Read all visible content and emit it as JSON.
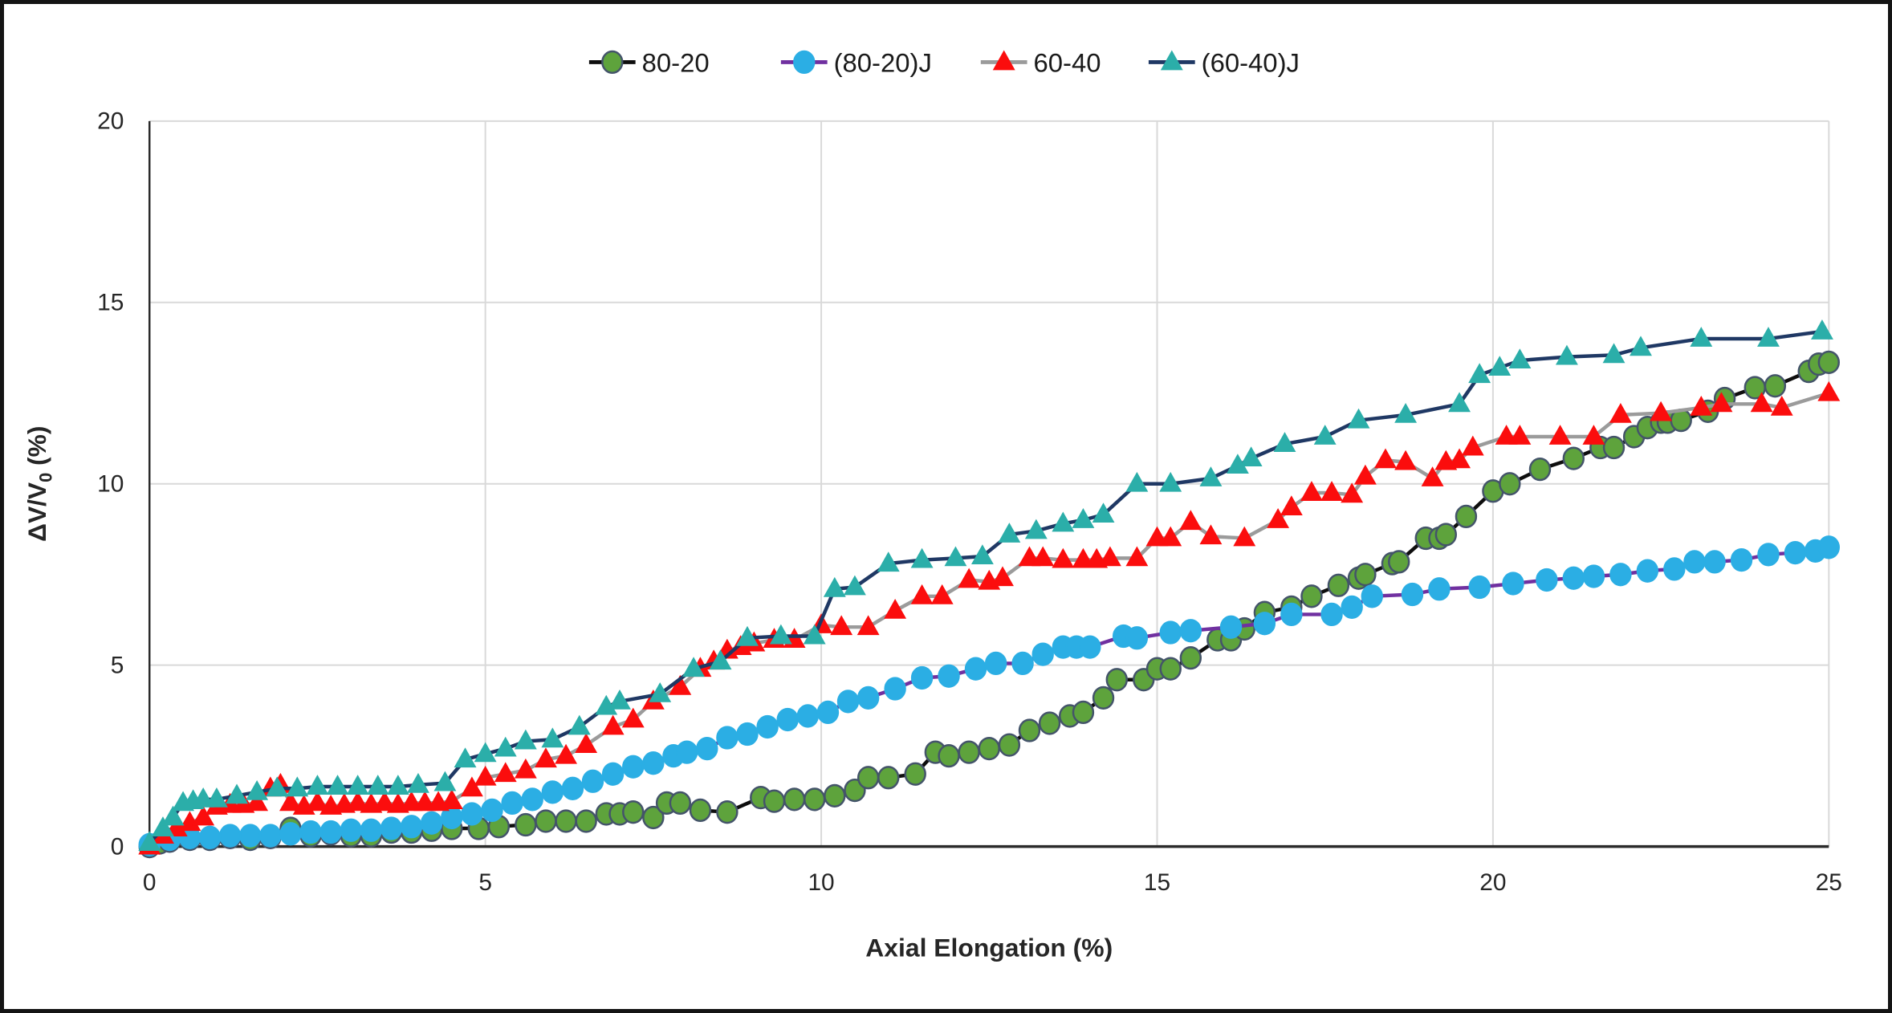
{
  "chart_data": {
    "type": "line",
    "title": "",
    "xlabel": "Axial Elongation (%)",
    "ylabel_parts": {
      "pre": "ΔV/V",
      "sub": "0",
      "post": " (%)"
    },
    "xlim": [
      0,
      25
    ],
    "ylim": [
      0,
      20
    ],
    "xticks": [
      0,
      5,
      10,
      15,
      20,
      25
    ],
    "yticks": [
      0,
      5,
      10,
      15,
      20
    ],
    "grid": true,
    "legend_position": "top-center",
    "colors": {
      "grid": "#d9d9d9",
      "axis": "#2b2b2b",
      "tick_text": "#262626",
      "legend_text": "#1a1a1a",
      "plot_bg": "#ffffff"
    },
    "series": [
      {
        "name": "80-20",
        "marker": "circle",
        "marker_color": "#5ea33c",
        "marker_stroke": "#44546a",
        "line_color": "#0e0e0e",
        "points": [
          [
            0,
            0
          ],
          [
            0.15,
            0.1
          ],
          [
            0.3,
            0.15
          ],
          [
            0.6,
            0.2
          ],
          [
            0.9,
            0.2
          ],
          [
            1.2,
            0.25
          ],
          [
            1.5,
            0.2
          ],
          [
            1.8,
            0.25
          ],
          [
            2.1,
            0.5
          ],
          [
            2.4,
            0.3
          ],
          [
            2.7,
            0.35
          ],
          [
            3.0,
            0.3
          ],
          [
            3.3,
            0.3
          ],
          [
            3.6,
            0.4
          ],
          [
            3.9,
            0.4
          ],
          [
            4.2,
            0.45
          ],
          [
            4.5,
            0.5
          ],
          [
            4.9,
            0.5
          ],
          [
            5.2,
            0.55
          ],
          [
            5.6,
            0.6
          ],
          [
            5.9,
            0.7
          ],
          [
            6.2,
            0.7
          ],
          [
            6.5,
            0.7
          ],
          [
            6.8,
            0.9
          ],
          [
            7.0,
            0.9
          ],
          [
            7.2,
            0.95
          ],
          [
            7.5,
            0.8
          ],
          [
            7.7,
            1.2
          ],
          [
            7.9,
            1.2
          ],
          [
            8.2,
            1.0
          ],
          [
            8.6,
            0.95
          ],
          [
            9.1,
            1.35
          ],
          [
            9.3,
            1.25
          ],
          [
            9.6,
            1.3
          ],
          [
            9.9,
            1.3
          ],
          [
            10.2,
            1.4
          ],
          [
            10.5,
            1.55
          ],
          [
            10.7,
            1.9
          ],
          [
            11.0,
            1.9
          ],
          [
            11.4,
            2.0
          ],
          [
            11.7,
            2.6
          ],
          [
            11.9,
            2.5
          ],
          [
            12.2,
            2.6
          ],
          [
            12.5,
            2.7
          ],
          [
            12.8,
            2.8
          ],
          [
            13.1,
            3.2
          ],
          [
            13.4,
            3.4
          ],
          [
            13.7,
            3.6
          ],
          [
            13.9,
            3.7
          ],
          [
            14.2,
            4.1
          ],
          [
            14.4,
            4.6
          ],
          [
            14.8,
            4.6
          ],
          [
            15.0,
            4.9
          ],
          [
            15.2,
            4.9
          ],
          [
            15.5,
            5.2
          ],
          [
            15.9,
            5.7
          ],
          [
            16.1,
            5.7
          ],
          [
            16.3,
            6.0
          ],
          [
            16.6,
            6.45
          ],
          [
            17.0,
            6.6
          ],
          [
            17.3,
            6.9
          ],
          [
            17.7,
            7.2
          ],
          [
            18.0,
            7.4
          ],
          [
            18.1,
            7.5
          ],
          [
            18.5,
            7.8
          ],
          [
            18.6,
            7.85
          ],
          [
            19.0,
            8.5
          ],
          [
            19.2,
            8.5
          ],
          [
            19.3,
            8.6
          ],
          [
            19.6,
            9.1
          ],
          [
            20.0,
            9.8
          ],
          [
            20.25,
            10.0
          ],
          [
            20.7,
            10.4
          ],
          [
            21.2,
            10.7
          ],
          [
            21.6,
            11.0
          ],
          [
            21.8,
            11.0
          ],
          [
            22.1,
            11.3
          ],
          [
            22.3,
            11.55
          ],
          [
            22.5,
            11.7
          ],
          [
            22.6,
            11.7
          ],
          [
            22.8,
            11.75
          ],
          [
            23.2,
            12.0
          ],
          [
            23.45,
            12.35
          ],
          [
            23.9,
            12.65
          ],
          [
            24.2,
            12.7
          ],
          [
            24.7,
            13.1
          ],
          [
            24.85,
            13.3
          ],
          [
            25,
            13.35
          ]
        ]
      },
      {
        "name": "(80-20)J",
        "marker": "circle",
        "marker_color": "#2baee4",
        "marker_stroke": "#2baee4",
        "line_color": "#7030a0",
        "points": [
          [
            0,
            0.05
          ],
          [
            0.3,
            0.2
          ],
          [
            0.6,
            0.25
          ],
          [
            0.9,
            0.25
          ],
          [
            1.2,
            0.3
          ],
          [
            1.5,
            0.3
          ],
          [
            1.8,
            0.3
          ],
          [
            2.1,
            0.35
          ],
          [
            2.4,
            0.4
          ],
          [
            2.7,
            0.4
          ],
          [
            3.0,
            0.45
          ],
          [
            3.3,
            0.45
          ],
          [
            3.6,
            0.5
          ],
          [
            3.9,
            0.55
          ],
          [
            4.2,
            0.65
          ],
          [
            4.5,
            0.8
          ],
          [
            4.8,
            0.9
          ],
          [
            5.1,
            1.0
          ],
          [
            5.4,
            1.2
          ],
          [
            5.7,
            1.3
          ],
          [
            6.0,
            1.5
          ],
          [
            6.3,
            1.6
          ],
          [
            6.6,
            1.8
          ],
          [
            6.9,
            2.0
          ],
          [
            7.2,
            2.2
          ],
          [
            7.5,
            2.3
          ],
          [
            7.8,
            2.5
          ],
          [
            8.0,
            2.6
          ],
          [
            8.3,
            2.7
          ],
          [
            8.6,
            3.0
          ],
          [
            8.9,
            3.1
          ],
          [
            9.2,
            3.3
          ],
          [
            9.5,
            3.5
          ],
          [
            9.8,
            3.6
          ],
          [
            10.1,
            3.7
          ],
          [
            10.4,
            4.0
          ],
          [
            10.7,
            4.1
          ],
          [
            11.1,
            4.35
          ],
          [
            11.5,
            4.65
          ],
          [
            11.9,
            4.7
          ],
          [
            12.3,
            4.9
          ],
          [
            12.6,
            5.05
          ],
          [
            13.0,
            5.05
          ],
          [
            13.3,
            5.3
          ],
          [
            13.6,
            5.5
          ],
          [
            13.8,
            5.5
          ],
          [
            14.0,
            5.5
          ],
          [
            14.5,
            5.8
          ],
          [
            14.7,
            5.75
          ],
          [
            15.2,
            5.9
          ],
          [
            15.5,
            5.95
          ],
          [
            16.1,
            6.05
          ],
          [
            16.6,
            6.15
          ],
          [
            17.0,
            6.4
          ],
          [
            17.6,
            6.4
          ],
          [
            17.9,
            6.6
          ],
          [
            18.2,
            6.9
          ],
          [
            18.8,
            6.95
          ],
          [
            19.2,
            7.1
          ],
          [
            19.8,
            7.15
          ],
          [
            20.3,
            7.25
          ],
          [
            20.8,
            7.35
          ],
          [
            21.2,
            7.4
          ],
          [
            21.5,
            7.45
          ],
          [
            21.9,
            7.5
          ],
          [
            22.3,
            7.6
          ],
          [
            22.7,
            7.65
          ],
          [
            23.0,
            7.85
          ],
          [
            23.3,
            7.85
          ],
          [
            23.7,
            7.9
          ],
          [
            24.1,
            8.05
          ],
          [
            24.5,
            8.1
          ],
          [
            24.8,
            8.15
          ],
          [
            25,
            8.25
          ]
        ]
      },
      {
        "name": "60-40",
        "marker": "triangle",
        "marker_color": "#fb0d0d",
        "marker_stroke": "#fb0d0d",
        "line_color": "#9b9b9b",
        "points": [
          [
            0,
            0
          ],
          [
            0.2,
            0.3
          ],
          [
            0.4,
            0.5
          ],
          [
            0.6,
            0.65
          ],
          [
            0.8,
            0.8
          ],
          [
            1.0,
            1.1
          ],
          [
            1.2,
            1.15
          ],
          [
            1.4,
            1.15
          ],
          [
            1.6,
            1.2
          ],
          [
            1.8,
            1.6
          ],
          [
            1.95,
            1.7
          ],
          [
            2.1,
            1.2
          ],
          [
            2.3,
            1.1
          ],
          [
            2.5,
            1.2
          ],
          [
            2.7,
            1.1
          ],
          [
            2.9,
            1.15
          ],
          [
            3.1,
            1.2
          ],
          [
            3.3,
            1.15
          ],
          [
            3.5,
            1.2
          ],
          [
            3.7,
            1.15
          ],
          [
            3.9,
            1.2
          ],
          [
            4.1,
            1.2
          ],
          [
            4.3,
            1.2
          ],
          [
            4.5,
            1.25
          ],
          [
            4.8,
            1.6
          ],
          [
            5.0,
            1.9
          ],
          [
            5.3,
            2.0
          ],
          [
            5.6,
            2.1
          ],
          [
            5.9,
            2.4
          ],
          [
            6.2,
            2.5
          ],
          [
            6.5,
            2.8
          ],
          [
            6.9,
            3.3
          ],
          [
            7.2,
            3.5
          ],
          [
            7.5,
            4.0
          ],
          [
            7.9,
            4.4
          ],
          [
            8.2,
            4.9
          ],
          [
            8.4,
            5.1
          ],
          [
            8.6,
            5.4
          ],
          [
            8.8,
            5.5
          ],
          [
            9.0,
            5.6
          ],
          [
            9.3,
            5.7
          ],
          [
            9.6,
            5.7
          ],
          [
            10.0,
            6.1
          ],
          [
            10.3,
            6.05
          ],
          [
            10.7,
            6.05
          ],
          [
            11.1,
            6.5
          ],
          [
            11.5,
            6.9
          ],
          [
            11.8,
            6.9
          ],
          [
            12.2,
            7.35
          ],
          [
            12.5,
            7.3
          ],
          [
            12.7,
            7.4
          ],
          [
            13.1,
            7.95
          ],
          [
            13.3,
            7.95
          ],
          [
            13.6,
            7.9
          ],
          [
            13.9,
            7.9
          ],
          [
            14.1,
            7.9
          ],
          [
            14.3,
            7.95
          ],
          [
            14.7,
            7.95
          ],
          [
            15.0,
            8.5
          ],
          [
            15.2,
            8.5
          ],
          [
            15.5,
            8.95
          ],
          [
            15.8,
            8.55
          ],
          [
            16.3,
            8.5
          ],
          [
            16.8,
            9.0
          ],
          [
            17.0,
            9.35
          ],
          [
            17.3,
            9.75
          ],
          [
            17.6,
            9.75
          ],
          [
            17.9,
            9.7
          ],
          [
            18.1,
            10.2
          ],
          [
            18.4,
            10.65
          ],
          [
            18.7,
            10.6
          ],
          [
            19.1,
            10.15
          ],
          [
            19.3,
            10.6
          ],
          [
            19.5,
            10.65
          ],
          [
            19.7,
            11.0
          ],
          [
            20.2,
            11.3
          ],
          [
            20.4,
            11.3
          ],
          [
            21.0,
            11.3
          ],
          [
            21.5,
            11.3
          ],
          [
            21.9,
            11.9
          ],
          [
            22.5,
            11.95
          ],
          [
            23.1,
            12.1
          ],
          [
            23.4,
            12.2
          ],
          [
            24.0,
            12.2
          ],
          [
            24.3,
            12.1
          ],
          [
            25,
            12.5
          ]
        ]
      },
      {
        "name": "(60-40)J",
        "marker": "triangle",
        "marker_color": "#2baea9",
        "marker_stroke": "#2baea9",
        "line_color": "#1f3864",
        "points": [
          [
            0,
            0.1
          ],
          [
            0.2,
            0.5
          ],
          [
            0.35,
            0.8
          ],
          [
            0.5,
            1.2
          ],
          [
            0.65,
            1.25
          ],
          [
            0.8,
            1.3
          ],
          [
            1.0,
            1.3
          ],
          [
            1.3,
            1.4
          ],
          [
            1.6,
            1.5
          ],
          [
            1.9,
            1.6
          ],
          [
            2.2,
            1.6
          ],
          [
            2.5,
            1.65
          ],
          [
            2.8,
            1.65
          ],
          [
            3.1,
            1.65
          ],
          [
            3.4,
            1.65
          ],
          [
            3.7,
            1.65
          ],
          [
            4.0,
            1.7
          ],
          [
            4.4,
            1.75
          ],
          [
            4.7,
            2.4
          ],
          [
            5.0,
            2.55
          ],
          [
            5.3,
            2.7
          ],
          [
            5.6,
            2.9
          ],
          [
            6.0,
            2.95
          ],
          [
            6.4,
            3.3
          ],
          [
            6.8,
            3.85
          ],
          [
            7.0,
            4.0
          ],
          [
            7.6,
            4.2
          ],
          [
            8.1,
            4.9
          ],
          [
            8.5,
            5.1
          ],
          [
            8.9,
            5.75
          ],
          [
            9.4,
            5.8
          ],
          [
            9.9,
            5.8
          ],
          [
            10.2,
            7.1
          ],
          [
            10.5,
            7.15
          ],
          [
            11.0,
            7.8
          ],
          [
            11.5,
            7.9
          ],
          [
            12.0,
            7.95
          ],
          [
            12.4,
            8.0
          ],
          [
            12.8,
            8.6
          ],
          [
            13.2,
            8.7
          ],
          [
            13.6,
            8.9
          ],
          [
            13.9,
            9.0
          ],
          [
            14.2,
            9.15
          ],
          [
            14.7,
            10.0
          ],
          [
            15.2,
            10.0
          ],
          [
            15.8,
            10.15
          ],
          [
            16.2,
            10.5
          ],
          [
            16.4,
            10.7
          ],
          [
            16.9,
            11.1
          ],
          [
            17.5,
            11.3
          ],
          [
            18.0,
            11.75
          ],
          [
            18.7,
            11.9
          ],
          [
            19.5,
            12.2
          ],
          [
            19.8,
            13.0
          ],
          [
            20.1,
            13.2
          ],
          [
            20.4,
            13.4
          ],
          [
            21.1,
            13.5
          ],
          [
            21.8,
            13.55
          ],
          [
            22.2,
            13.75
          ],
          [
            23.1,
            14.0
          ],
          [
            24.1,
            14.0
          ],
          [
            24.9,
            14.2
          ]
        ]
      }
    ]
  }
}
